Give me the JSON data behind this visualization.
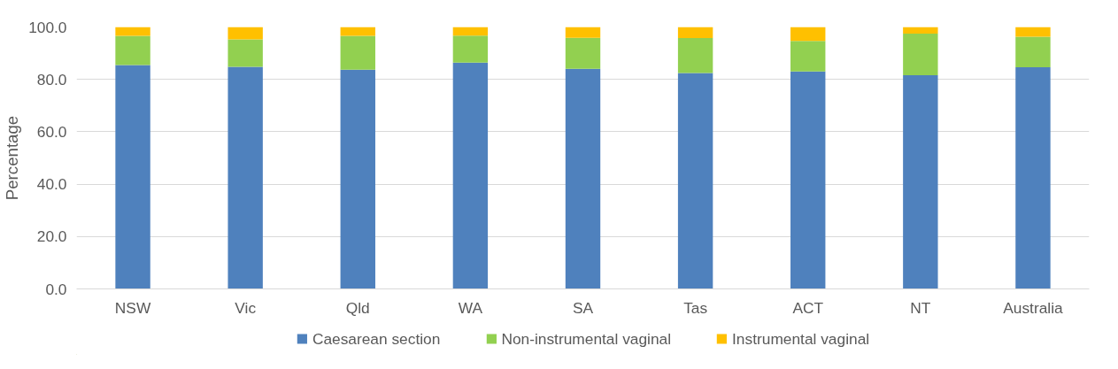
{
  "chart_data": {
    "type": "bar",
    "stacked": true,
    "ylabel": "Percentage",
    "categories": [
      "NSW",
      "Vic",
      "Qld",
      "WA",
      "SA",
      "Tas",
      "ACT",
      "NT",
      "Australia"
    ],
    "series": [
      {
        "name": "Caesarean section",
        "color": "#4f81bd",
        "values": [
          85.5,
          84.8,
          83.7,
          86.4,
          84.0,
          82.4,
          83.0,
          81.6,
          84.6
        ]
      },
      {
        "name": "Non-instrumental vaginal",
        "color": "#92d050",
        "values": [
          11.1,
          10.5,
          12.9,
          10.3,
          11.9,
          13.4,
          11.7,
          15.9,
          11.7
        ]
      },
      {
        "name": "Instrumental vaginal",
        "color": "#ffc000",
        "values": [
          3.4,
          4.7,
          3.4,
          3.3,
          4.1,
          4.2,
          5.3,
          2.5,
          3.7
        ]
      }
    ],
    "ylim": [
      0,
      100
    ],
    "yticks": [
      {
        "value": 0,
        "label": "0.0"
      },
      {
        "value": 20,
        "label": "20.0"
      },
      {
        "value": 40,
        "label": "40.0"
      },
      {
        "value": 60,
        "label": "60.0"
      },
      {
        "value": 80,
        "label": "80.0"
      },
      {
        "value": 100,
        "label": "100.0"
      }
    ],
    "grid": "y",
    "legend": "bottom"
  }
}
